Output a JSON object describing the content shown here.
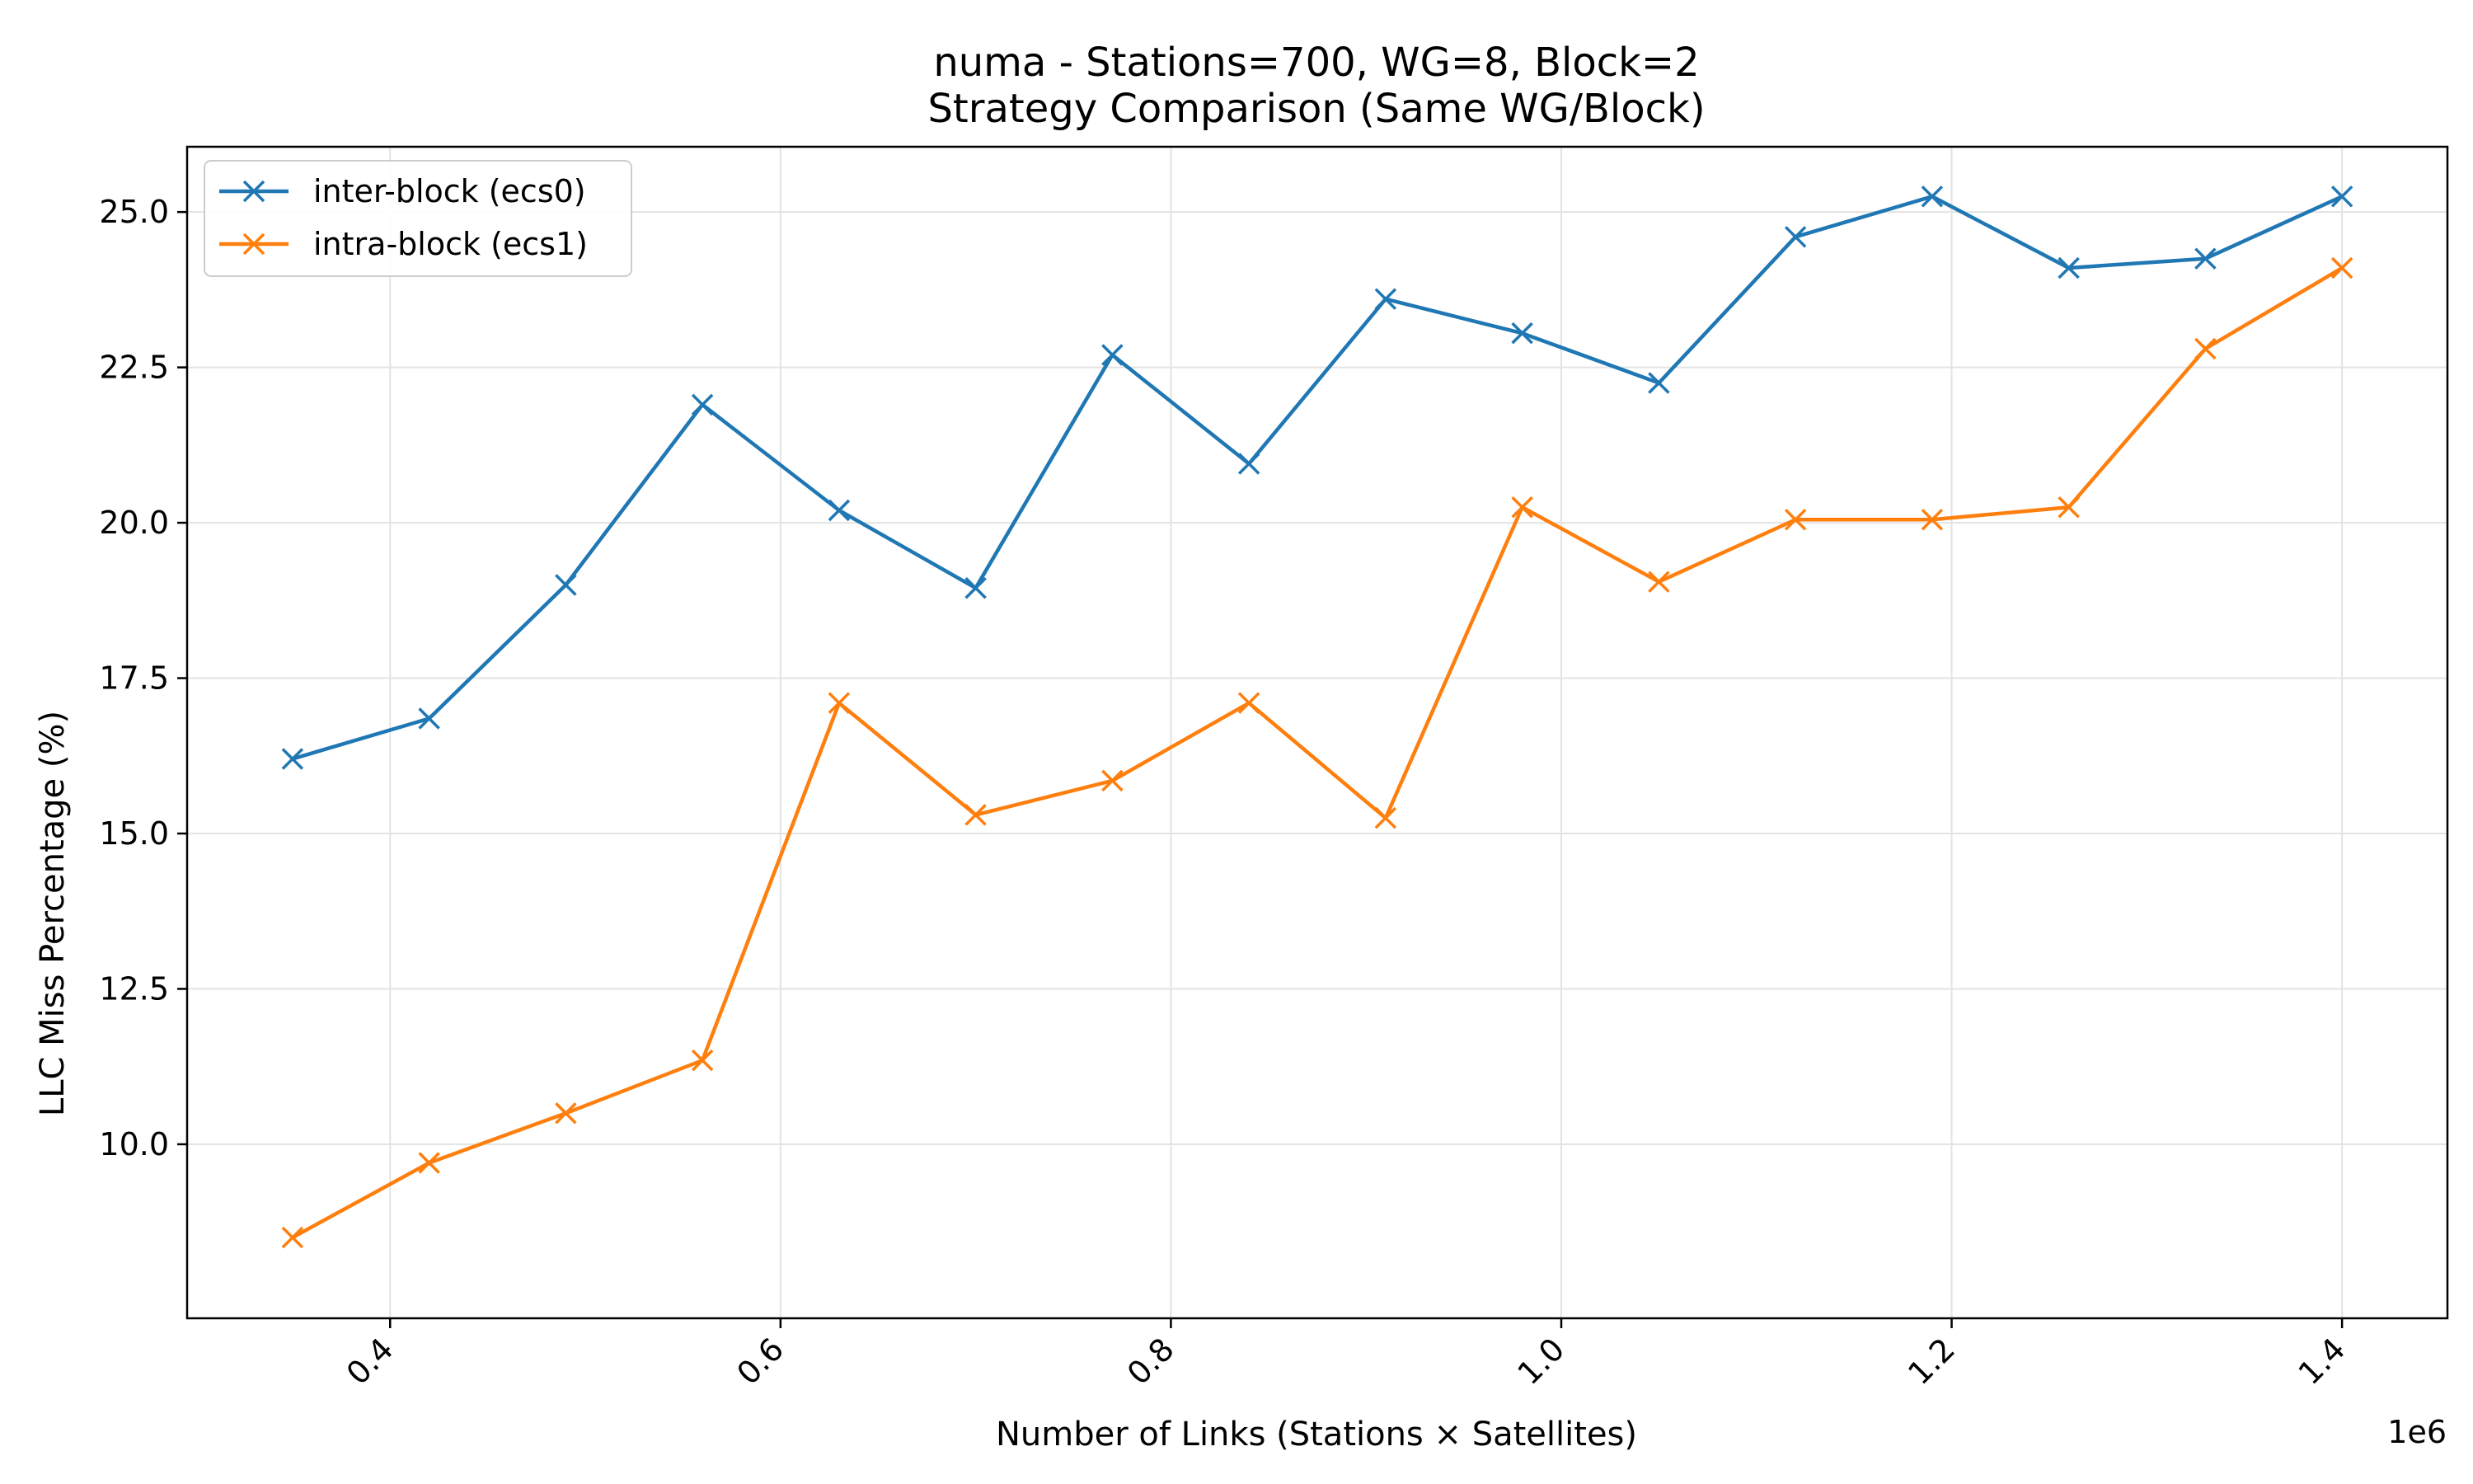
{
  "chart_data": {
    "type": "line",
    "title_line1": "numa - Stations=700, WG=8, Block=2",
    "title_line2": "Strategy Comparison (Same WG/Block)",
    "xlabel": "Number of Links (Stations × Satellites)",
    "ylabel": "LLC Miss Percentage (%)",
    "x_offset_label": "1e6",
    "xlim": [
      296000,
      1454000
    ],
    "ylim": [
      7.2,
      26.05
    ],
    "x_ticks": [
      400000,
      600000,
      800000,
      1000000,
      1200000,
      1400000
    ],
    "x_tick_labels": [
      "0.4",
      "0.6",
      "0.8",
      "1.0",
      "1.2",
      "1.4"
    ],
    "y_ticks": [
      10.0,
      12.5,
      15.0,
      17.5,
      20.0,
      22.5,
      25.0
    ],
    "y_tick_labels": [
      "10.0",
      "12.5",
      "15.0",
      "17.5",
      "20.0",
      "22.5",
      "25.0"
    ],
    "grid": true,
    "legend_position": "top-left",
    "marker": "x",
    "x": [
      350000,
      420000,
      490000,
      560000,
      630000,
      700000,
      770000,
      840000,
      910000,
      980000,
      1050000,
      1120000,
      1190000,
      1260000,
      1330000,
      1400000
    ],
    "series": [
      {
        "name": "inter-block (ecs0)",
        "color": "#1f77b4",
        "values": [
          16.2,
          16.85,
          19.0,
          21.9,
          20.2,
          18.95,
          22.7,
          20.95,
          23.6,
          23.05,
          22.25,
          24.6,
          25.25,
          24.1,
          24.25,
          25.25
        ]
      },
      {
        "name": "intra-block (ecs1)",
        "color": "#ff7f0e",
        "values": [
          8.5,
          9.7,
          10.5,
          11.35,
          17.1,
          15.3,
          15.85,
          17.1,
          15.25,
          20.25,
          19.05,
          20.05,
          20.05,
          20.25,
          22.8,
          24.1
        ]
      }
    ]
  }
}
